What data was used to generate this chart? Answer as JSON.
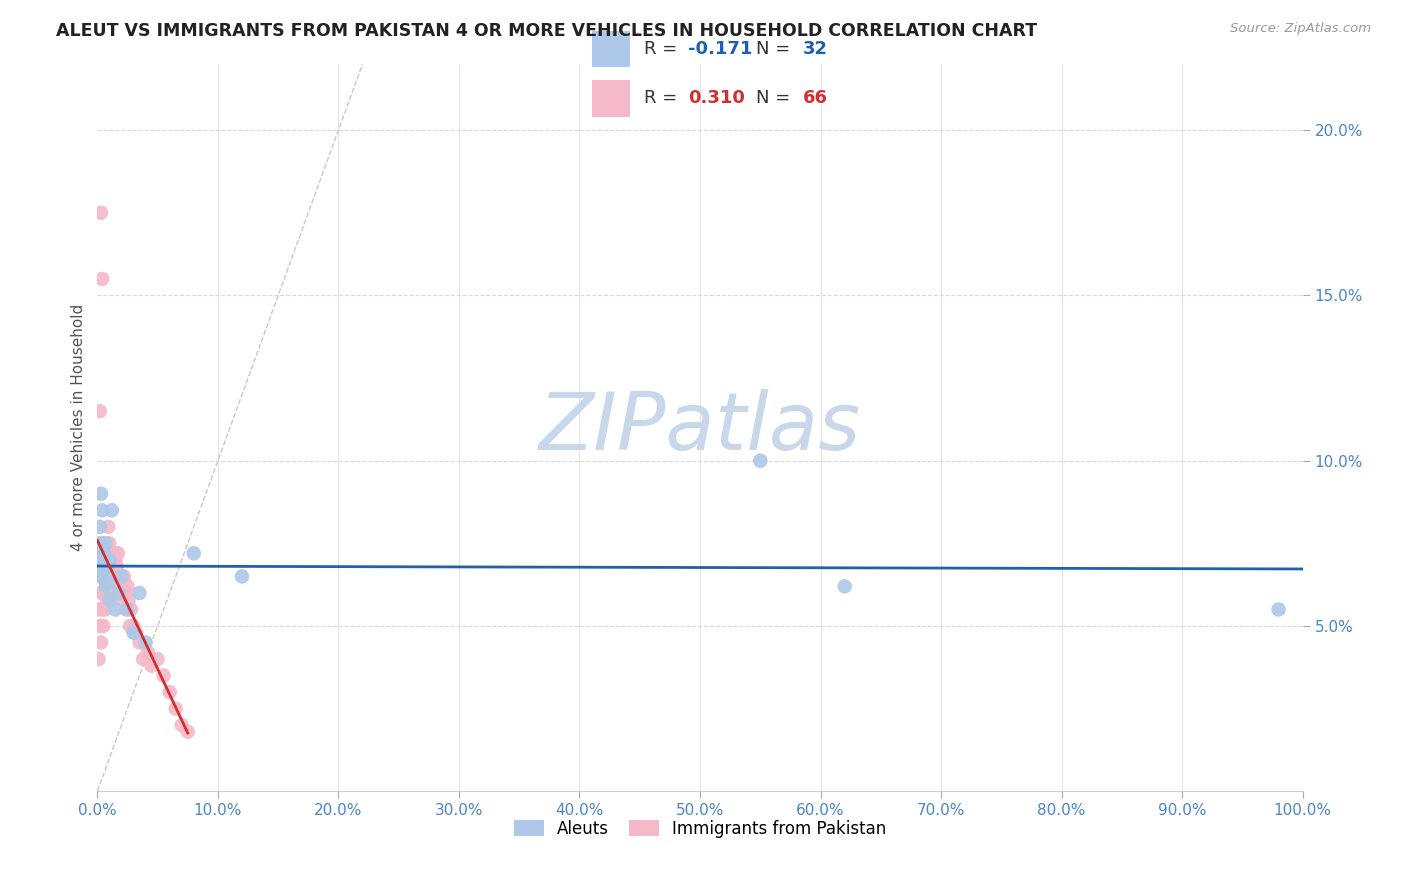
{
  "title": "ALEUT VS IMMIGRANTS FROM PAKISTAN 4 OR MORE VEHICLES IN HOUSEHOLD CORRELATION CHART",
  "source": "Source: ZipAtlas.com",
  "ylabel": "4 or more Vehicles in Household",
  "xlim": [
    0.0,
    1.0
  ],
  "ylim": [
    0.0,
    0.22
  ],
  "xticks": [
    0.0,
    0.1,
    0.2,
    0.3,
    0.4,
    0.5,
    0.6,
    0.7,
    0.8,
    0.9,
    1.0
  ],
  "xticklabels": [
    "0.0%",
    "10.0%",
    "20.0%",
    "30.0%",
    "40.0%",
    "50.0%",
    "60.0%",
    "70.0%",
    "80.0%",
    "90.0%",
    "100.0%"
  ],
  "yticks": [
    0.05,
    0.1,
    0.15,
    0.2
  ],
  "yticklabels": [
    "5.0%",
    "10.0%",
    "15.0%",
    "20.0%"
  ],
  "aleut_R": -0.171,
  "aleut_N": 32,
  "pakistan_R": 0.31,
  "pakistan_N": 66,
  "aleut_color": "#adc8e8",
  "pakistan_color": "#f5b8c8",
  "trendline_aleut_color": "#2060b0",
  "trendline_pakistan_color": "#d03030",
  "diagonal_color": "#c8c8c8",
  "watermark_color": "#c8d8ea",
  "aleut_x": [
    0.001,
    0.002,
    0.002,
    0.003,
    0.003,
    0.003,
    0.004,
    0.004,
    0.005,
    0.005,
    0.005,
    0.006,
    0.006,
    0.007,
    0.007,
    0.008,
    0.009,
    0.01,
    0.01,
    0.012,
    0.015,
    0.018,
    0.02,
    0.025,
    0.03,
    0.035,
    0.04,
    0.08,
    0.12,
    0.55,
    0.62,
    0.98
  ],
  "aleut_y": [
    0.075,
    0.08,
    0.07,
    0.072,
    0.09,
    0.065,
    0.085,
    0.068,
    0.075,
    0.072,
    0.065,
    0.07,
    0.068,
    0.075,
    0.062,
    0.068,
    0.063,
    0.07,
    0.058,
    0.085,
    0.055,
    0.06,
    0.065,
    0.055,
    0.048,
    0.06,
    0.045,
    0.072,
    0.065,
    0.1,
    0.062,
    0.055
  ],
  "pakistan_x": [
    0.001,
    0.001,
    0.002,
    0.002,
    0.002,
    0.003,
    0.003,
    0.003,
    0.003,
    0.004,
    0.004,
    0.004,
    0.005,
    0.005,
    0.005,
    0.005,
    0.006,
    0.006,
    0.006,
    0.007,
    0.007,
    0.007,
    0.007,
    0.008,
    0.008,
    0.008,
    0.009,
    0.009,
    0.01,
    0.01,
    0.01,
    0.011,
    0.012,
    0.012,
    0.013,
    0.014,
    0.015,
    0.015,
    0.016,
    0.017,
    0.018,
    0.019,
    0.02,
    0.021,
    0.022,
    0.023,
    0.024,
    0.025,
    0.026,
    0.027,
    0.028,
    0.03,
    0.032,
    0.035,
    0.038,
    0.042,
    0.045,
    0.05,
    0.055,
    0.06,
    0.065,
    0.07,
    0.075,
    0.003,
    0.004,
    0.002
  ],
  "pakistan_y": [
    0.055,
    0.04,
    0.065,
    0.07,
    0.05,
    0.065,
    0.072,
    0.06,
    0.045,
    0.068,
    0.075,
    0.055,
    0.07,
    0.065,
    0.06,
    0.05,
    0.072,
    0.068,
    0.055,
    0.075,
    0.07,
    0.065,
    0.06,
    0.07,
    0.065,
    0.058,
    0.072,
    0.08,
    0.075,
    0.068,
    0.062,
    0.065,
    0.07,
    0.06,
    0.065,
    0.072,
    0.07,
    0.065,
    0.068,
    0.072,
    0.065,
    0.06,
    0.058,
    0.062,
    0.065,
    0.06,
    0.055,
    0.062,
    0.058,
    0.05,
    0.055,
    0.05,
    0.048,
    0.045,
    0.04,
    0.042,
    0.038,
    0.04,
    0.035,
    0.03,
    0.025,
    0.02,
    0.018,
    0.175,
    0.155,
    0.115
  ]
}
